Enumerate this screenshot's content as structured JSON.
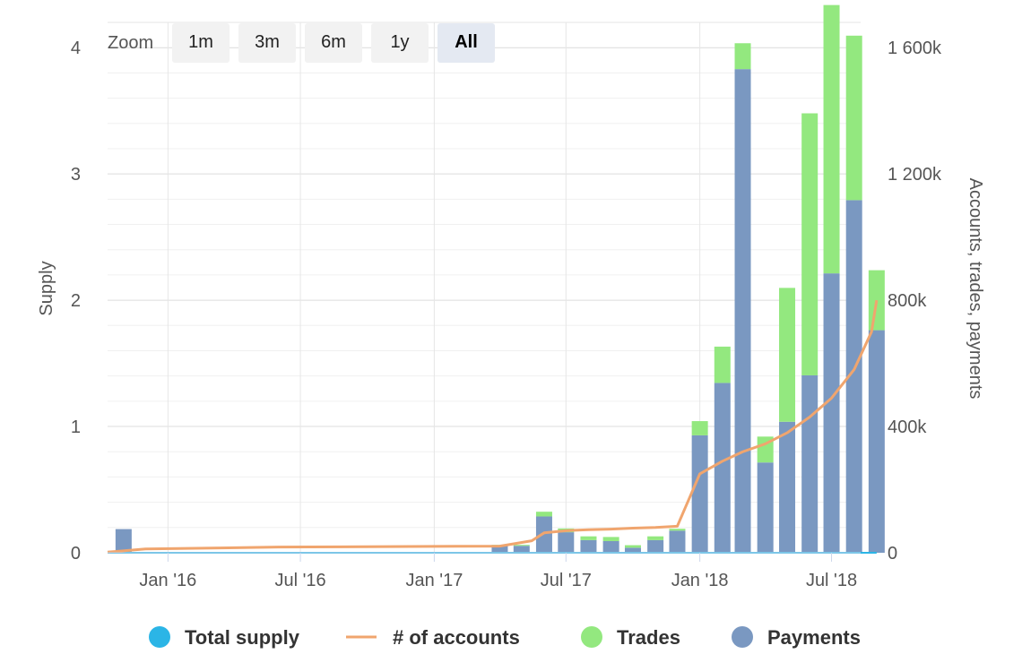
{
  "zoom": {
    "label": "Zoom",
    "buttons": [
      {
        "label": "1m",
        "active": false
      },
      {
        "label": "3m",
        "active": false
      },
      {
        "label": "6m",
        "active": false
      },
      {
        "label": "1y",
        "active": false
      },
      {
        "label": "All",
        "active": true
      }
    ]
  },
  "chart_data": {
    "type": "bar",
    "x_axis": {
      "type": "date",
      "range": [
        "2015-10-10",
        "2018-08-10"
      ],
      "tick_labels": [
        "Jan '16",
        "Jul '16",
        "Jan '17",
        "Jul '17",
        "Jan '18",
        "Jul '18"
      ],
      "tick_dates": [
        "2016-01-01",
        "2016-07-01",
        "2017-01-01",
        "2017-07-01",
        "2018-01-01",
        "2018-07-01"
      ]
    },
    "y_axis_left": {
      "title": "Supply",
      "range": [
        0,
        4.2
      ],
      "ticks": [
        0,
        1,
        2,
        3,
        4
      ],
      "tick_labels": [
        "0",
        "1",
        "2",
        "3",
        "4"
      ]
    },
    "y_axis_right": {
      "title": "Accounts, trades, payments",
      "range": [
        0,
        1680000
      ],
      "ticks": [
        0,
        400000,
        800000,
        1200000,
        1600000
      ],
      "tick_labels": [
        "0",
        "400k",
        "800k",
        "1 200k",
        "1 600k"
      ]
    },
    "grid": true,
    "legend": {
      "position": "bottom",
      "entries": [
        {
          "name": "Total supply",
          "symbol": "circle",
          "color": "#2bb5e6"
        },
        {
          "name": "# of accounts",
          "symbol": "line",
          "color": "#f0a56e"
        },
        {
          "name": "Trades",
          "symbol": "circle",
          "color": "#93e87f"
        },
        {
          "name": "Payments",
          "symbol": "circle",
          "color": "#7a98c1"
        }
      ]
    },
    "colors": {
      "payments": "#7a98c1",
      "trades": "#93e87f",
      "accounts": "#f0a56e",
      "supply": "#2bb5e6"
    },
    "bars": [
      {
        "date": "2015-11-01",
        "payments": 75000,
        "trades": 0
      },
      {
        "date": "2017-04-01",
        "payments": 22000,
        "trades": 3000
      },
      {
        "date": "2017-05-01",
        "payments": 22000,
        "trades": 3000
      },
      {
        "date": "2017-06-01",
        "payments": 115000,
        "trades": 15000
      },
      {
        "date": "2017-07-01",
        "payments": 65000,
        "trades": 12000
      },
      {
        "date": "2017-08-01",
        "payments": 40000,
        "trades": 12000
      },
      {
        "date": "2017-09-01",
        "payments": 37000,
        "trades": 13000
      },
      {
        "date": "2017-10-01",
        "payments": 16000,
        "trades": 8000
      },
      {
        "date": "2017-11-01",
        "payments": 40000,
        "trades": 12000
      },
      {
        "date": "2017-12-01",
        "payments": 70000,
        "trades": 6000
      },
      {
        "date": "2018-01-01",
        "payments": 372000,
        "trades": 45000
      },
      {
        "date": "2018-02-01",
        "payments": 538000,
        "trades": 115000
      },
      {
        "date": "2018-03-01",
        "payments": 1532000,
        "trades": 82000
      },
      {
        "date": "2018-04-01",
        "payments": 286000,
        "trades": 82000
      },
      {
        "date": "2018-05-01",
        "payments": 415000,
        "trades": 424000
      },
      {
        "date": "2018-06-01",
        "payments": 562000,
        "trades": 830000
      },
      {
        "date": "2018-07-01",
        "payments": 885000,
        "trades": 850000
      },
      {
        "date": "2018-08-01",
        "payments": 1117000,
        "trades": 521000
      },
      {
        "date": "2018-09-01",
        "payments": 705000,
        "trades": 190000
      }
    ],
    "accounts": [
      {
        "date": "2015-10-10",
        "value": 2000
      },
      {
        "date": "2015-12-01",
        "value": 12000
      },
      {
        "date": "2016-06-01",
        "value": 18000
      },
      {
        "date": "2017-04-01",
        "value": 21000
      },
      {
        "date": "2017-05-15",
        "value": 38000
      },
      {
        "date": "2017-06-01",
        "value": 63000
      },
      {
        "date": "2017-07-01",
        "value": 70000
      },
      {
        "date": "2017-08-01",
        "value": 73000
      },
      {
        "date": "2017-09-01",
        "value": 75000
      },
      {
        "date": "2017-10-01",
        "value": 78000
      },
      {
        "date": "2017-11-01",
        "value": 80000
      },
      {
        "date": "2017-12-01",
        "value": 84000
      },
      {
        "date": "2018-01-01",
        "value": 250000
      },
      {
        "date": "2018-02-01",
        "value": 290000
      },
      {
        "date": "2018-03-01",
        "value": 320000
      },
      {
        "date": "2018-04-01",
        "value": 345000
      },
      {
        "date": "2018-05-01",
        "value": 380000
      },
      {
        "date": "2018-06-01",
        "value": 430000
      },
      {
        "date": "2018-07-01",
        "value": 490000
      },
      {
        "date": "2018-08-01",
        "value": 580000
      },
      {
        "date": "2018-08-25",
        "value": 700000
      },
      {
        "date": "2018-09-01",
        "value": 800000
      }
    ],
    "total_supply": [
      {
        "date": "2015-10-10",
        "value": 0
      },
      {
        "date": "2018-09-01",
        "value": 0
      }
    ]
  }
}
